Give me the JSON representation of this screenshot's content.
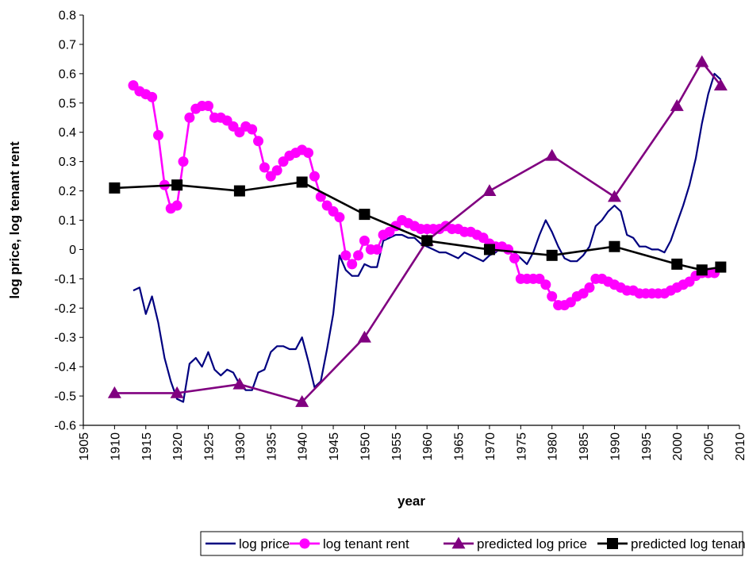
{
  "chart_data": {
    "type": "line",
    "xlabel": "year",
    "ylabel": "log price, log tenant rent",
    "xlim": [
      1905,
      2010
    ],
    "ylim": [
      -0.6,
      0.8
    ],
    "x_ticks": [
      1905,
      1910,
      1915,
      1920,
      1925,
      1930,
      1935,
      1940,
      1945,
      1950,
      1955,
      1960,
      1965,
      1970,
      1975,
      1980,
      1985,
      1990,
      1995,
      2000,
      2005,
      2010
    ],
    "y_ticks": [
      -0.6,
      -0.5,
      -0.4,
      -0.3,
      -0.2,
      -0.1,
      0,
      0.1,
      0.2,
      0.3,
      0.4,
      0.5,
      0.6,
      0.7,
      0.8
    ],
    "grid": false,
    "legend_position": "bottom",
    "series": [
      {
        "name": "log price",
        "color": "#000080",
        "marker": "none",
        "x": [
          1913,
          1914,
          1915,
          1916,
          1917,
          1918,
          1919,
          1920,
          1921,
          1922,
          1923,
          1924,
          1925,
          1926,
          1927,
          1928,
          1929,
          1930,
          1931,
          1932,
          1933,
          1934,
          1935,
          1936,
          1937,
          1938,
          1939,
          1940,
          1941,
          1942,
          1943,
          1944,
          1945,
          1946,
          1947,
          1948,
          1949,
          1950,
          1951,
          1952,
          1953,
          1954,
          1955,
          1956,
          1957,
          1958,
          1959,
          1960,
          1961,
          1962,
          1963,
          1964,
          1965,
          1966,
          1967,
          1968,
          1969,
          1970,
          1971,
          1972,
          1973,
          1974,
          1975,
          1976,
          1977,
          1978,
          1979,
          1980,
          1981,
          1982,
          1983,
          1984,
          1985,
          1986,
          1987,
          1988,
          1989,
          1990,
          1991,
          1992,
          1993,
          1994,
          1995,
          1996,
          1997,
          1998,
          1999,
          2000,
          2001,
          2002,
          2003,
          2004,
          2005,
          2006,
          2007
        ],
        "y": [
          -0.14,
          -0.13,
          -0.22,
          -0.16,
          -0.25,
          -0.37,
          -0.45,
          -0.51,
          -0.52,
          -0.39,
          -0.37,
          -0.4,
          -0.35,
          -0.41,
          -0.43,
          -0.41,
          -0.42,
          -0.46,
          -0.48,
          -0.48,
          -0.42,
          -0.41,
          -0.35,
          -0.33,
          -0.33,
          -0.34,
          -0.34,
          -0.3,
          -0.38,
          -0.47,
          -0.45,
          -0.34,
          -0.22,
          -0.02,
          -0.07,
          -0.09,
          -0.09,
          -0.05,
          -0.06,
          -0.06,
          0.03,
          0.04,
          0.05,
          0.05,
          0.04,
          0.04,
          0.02,
          0.01,
          0.0,
          -0.01,
          -0.01,
          -0.02,
          -0.03,
          -0.01,
          -0.02,
          -0.03,
          -0.04,
          -0.02,
          -0.01,
          0.01,
          0.0,
          -0.01,
          -0.03,
          -0.05,
          -0.01,
          0.05,
          0.1,
          0.06,
          0.01,
          -0.03,
          -0.04,
          -0.04,
          -0.02,
          0.01,
          0.08,
          0.1,
          0.13,
          0.15,
          0.13,
          0.05,
          0.04,
          0.01,
          0.01,
          0.0,
          0.0,
          -0.01,
          0.03,
          0.09,
          0.15,
          0.22,
          0.31,
          0.43,
          0.53,
          0.6,
          0.58
        ]
      },
      {
        "name": "log tenant rent",
        "color": "#ff00ff",
        "marker": "circle",
        "x": [
          1913,
          1914,
          1915,
          1916,
          1917,
          1918,
          1919,
          1920,
          1921,
          1922,
          1923,
          1924,
          1925,
          1926,
          1927,
          1928,
          1929,
          1930,
          1931,
          1932,
          1933,
          1934,
          1935,
          1936,
          1937,
          1938,
          1939,
          1940,
          1941,
          1942,
          1943,
          1944,
          1945,
          1946,
          1947,
          1948,
          1949,
          1950,
          1951,
          1952,
          1953,
          1954,
          1955,
          1956,
          1957,
          1958,
          1959,
          1960,
          1961,
          1962,
          1963,
          1964,
          1965,
          1966,
          1967,
          1968,
          1969,
          1970,
          1971,
          1972,
          1973,
          1974,
          1975,
          1976,
          1977,
          1978,
          1979,
          1980,
          1981,
          1982,
          1983,
          1984,
          1985,
          1986,
          1987,
          1988,
          1989,
          1990,
          1991,
          1992,
          1993,
          1994,
          1995,
          1996,
          1997,
          1998,
          1999,
          2000,
          2001,
          2002,
          2003,
          2004,
          2005,
          2006,
          2007
        ],
        "y": [
          0.56,
          0.54,
          0.53,
          0.52,
          0.39,
          0.22,
          0.14,
          0.15,
          0.3,
          0.45,
          0.48,
          0.49,
          0.49,
          0.45,
          0.45,
          0.44,
          0.42,
          0.4,
          0.42,
          0.41,
          0.37,
          0.28,
          0.25,
          0.27,
          0.3,
          0.32,
          0.33,
          0.34,
          0.33,
          0.25,
          0.18,
          0.15,
          0.13,
          0.11,
          -0.02,
          -0.05,
          -0.02,
          0.03,
          0.0,
          0.0,
          0.05,
          0.06,
          0.08,
          0.1,
          0.09,
          0.08,
          0.07,
          0.07,
          0.07,
          0.07,
          0.08,
          0.07,
          0.07,
          0.06,
          0.06,
          0.05,
          0.04,
          0.02,
          0.01,
          0.01,
          0.0,
          -0.03,
          -0.1,
          -0.1,
          -0.1,
          -0.1,
          -0.12,
          -0.16,
          -0.19,
          -0.19,
          -0.18,
          -0.16,
          -0.15,
          -0.13,
          -0.1,
          -0.1,
          -0.11,
          -0.12,
          -0.13,
          -0.14,
          -0.14,
          -0.15,
          -0.15,
          -0.15,
          -0.15,
          -0.15,
          -0.14,
          -0.13,
          -0.12,
          -0.11,
          -0.09,
          -0.08,
          -0.08,
          -0.08,
          -0.06
        ]
      },
      {
        "name": "predicted log price",
        "color": "#800080",
        "marker": "triangle",
        "x": [
          1910,
          1920,
          1930,
          1940,
          1950,
          1960,
          1970,
          1980,
          1990,
          2000,
          2004,
          2007
        ],
        "y": [
          -0.49,
          -0.49,
          -0.46,
          -0.52,
          -0.3,
          0.03,
          0.2,
          0.32,
          0.18,
          0.49,
          0.64,
          0.56
        ]
      },
      {
        "name": "predicted log tenant rent",
        "color": "#000000",
        "marker": "square",
        "x": [
          1910,
          1920,
          1930,
          1940,
          1950,
          1960,
          1970,
          1980,
          1990,
          2000,
          2004,
          2007
        ],
        "y": [
          0.21,
          0.22,
          0.2,
          0.23,
          0.12,
          0.03,
          0.0,
          -0.02,
          0.01,
          -0.05,
          -0.07,
          -0.06
        ]
      }
    ]
  }
}
